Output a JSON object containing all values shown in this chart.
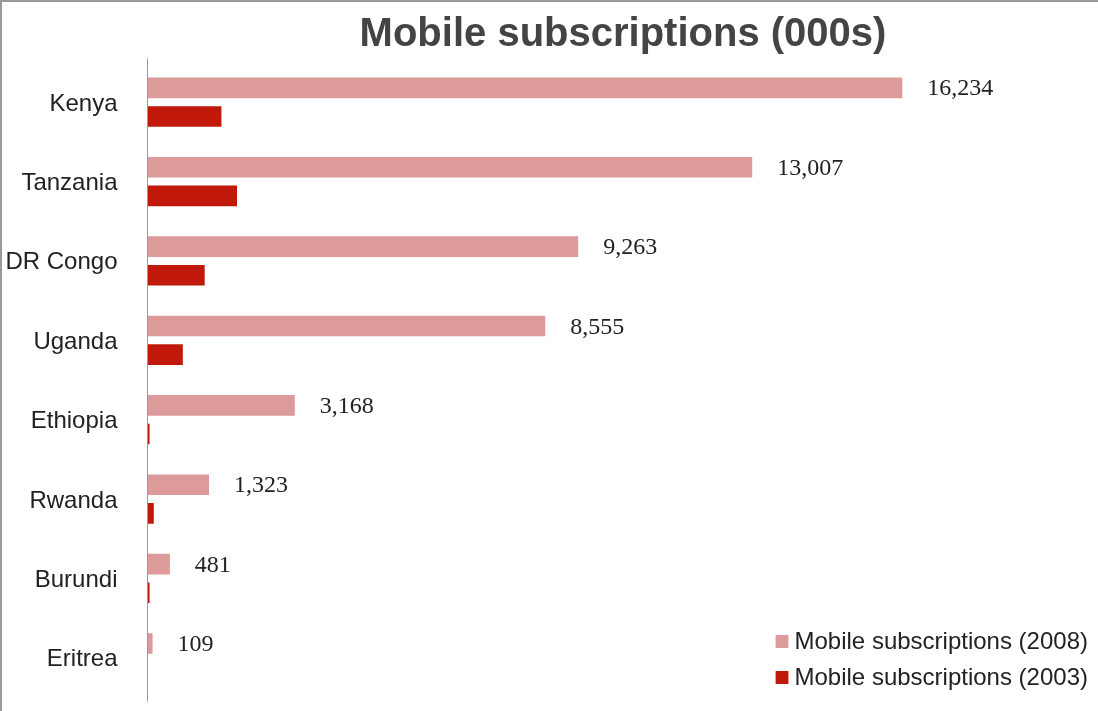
{
  "chart_data": {
    "type": "bar",
    "orientation": "horizontal",
    "title": "Mobile subscriptions (000s)",
    "categories": [
      "Kenya",
      "Tanzania",
      "DR Congo",
      "Uganda",
      "Ethiopia",
      "Rwanda",
      "Burundi",
      "Eritrea"
    ],
    "series": [
      {
        "name": "Mobile subscriptions (2008)",
        "color": "#dc9a9a",
        "values": [
          16234,
          13007,
          9263,
          8555,
          3168,
          1323,
          481,
          109
        ],
        "value_labels": [
          "16,234",
          "13,007",
          "9,263",
          "8,555",
          "3,168",
          "1,323",
          "481",
          "109"
        ]
      },
      {
        "name": "Mobile subscriptions (2003)",
        "color": "#c0190c",
        "values": [
          1590,
          1925,
          1230,
          760,
          45,
          135,
          45,
          null
        ]
      }
    ],
    "legend": "bottom right",
    "grid": false,
    "tick_labels": "y"
  }
}
